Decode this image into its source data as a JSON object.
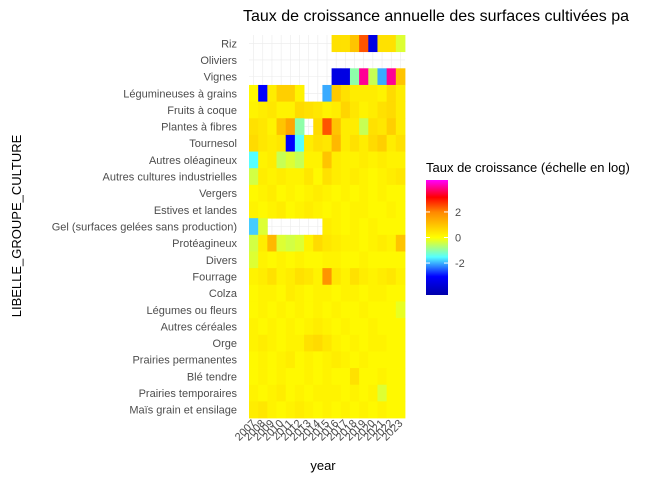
{
  "chart_data": {
    "type": "heatmap",
    "title": "Taux de croissance annuelle des surfaces cultivées pa",
    "xlabel": "year",
    "ylabel": "LIBELLE_GROUPE_CULTURE",
    "x": [
      "2007",
      "2008",
      "2009",
      "2010",
      "2011",
      "2012",
      "2013",
      "2014",
      "2015",
      "2016",
      "2017",
      "2018",
      "2019",
      "2020",
      "2021",
      "2022",
      "2023"
    ],
    "y": [
      "Riz",
      "Oliviers",
      "Vignes",
      "Légumineuses à grains",
      "Fruits à coque",
      "Plantes à fibres",
      "Tournesol",
      "Autres oléagineux",
      "Autres cultures industrielles",
      "Vergers",
      "Estives et landes",
      "Gel (surfaces gelées sans production)",
      "Protéagineux",
      "Divers",
      "Fourrage",
      "Colza",
      "Légumes ou fleurs",
      "Autres céréales",
      "Orge",
      "Prairies permanentes",
      "Blé tendre",
      "Prairies temporaires",
      "Maïs grain et ensilage"
    ],
    "values": [
      [
        null,
        null,
        null,
        null,
        null,
        null,
        null,
        null,
        null,
        0.5,
        0.5,
        1.0,
        2.5,
        -3.5,
        0.5,
        0.5,
        -0.3
      ],
      [
        null,
        null,
        null,
        null,
        null,
        null,
        null,
        null,
        null,
        null,
        null,
        null,
        null,
        null,
        null,
        null,
        null
      ],
      [
        null,
        null,
        null,
        null,
        null,
        null,
        null,
        null,
        null,
        -3.5,
        -3.5,
        -1.0,
        4.0,
        -0.5,
        -2.0,
        4.0,
        1.0
      ],
      [
        0.1,
        -3.0,
        0.3,
        0.8,
        0.8,
        0.2,
        null,
        null,
        -2.0,
        0.9,
        0.5,
        0.3,
        0.3,
        0.3,
        0.2,
        0.6,
        0.3
      ],
      [
        0.2,
        0.3,
        0.4,
        0.2,
        0.2,
        0.6,
        0.5,
        0.4,
        0.2,
        0.3,
        0.7,
        0.4,
        0.2,
        0.3,
        0.5,
        0.6,
        0.3
      ],
      [
        0.5,
        0.4,
        0.2,
        1.0,
        1.5,
        -1.0,
        null,
        0.6,
        2.5,
        1.0,
        0.3,
        0.3,
        -0.5,
        0.5,
        0.4,
        0.8,
        0.3
      ],
      [
        0.6,
        0.4,
        0.3,
        0.4,
        -3.0,
        -1.5,
        0.3,
        0.5,
        0.4,
        1.2,
        0.3,
        0.5,
        0.3,
        0.6,
        0.8,
        0.3,
        0.5
      ],
      [
        -1.5,
        0.2,
        0.3,
        -0.5,
        -0.3,
        -0.5,
        0.2,
        0.2,
        1.0,
        0.3,
        0.2,
        0.2,
        0.3,
        0.2,
        0.3,
        0.2,
        0.2
      ],
      [
        -0.4,
        0.3,
        0.2,
        0.3,
        0.2,
        0.2,
        0.4,
        0.1,
        0.5,
        0.3,
        0.2,
        0.3,
        0.2,
        0.1,
        0.2,
        0.3,
        0.4
      ],
      [
        0.1,
        0.2,
        0.3,
        0.1,
        0.2,
        0.1,
        0.2,
        0.3,
        0.2,
        0.1,
        0.2,
        0.1,
        0.2,
        0.1,
        0.2,
        0.1,
        0.1
      ],
      [
        0.2,
        0.1,
        0.2,
        0.3,
        0.1,
        0.2,
        0.3,
        0.2,
        0.1,
        0.2,
        0.1,
        0.2,
        0.2,
        0.1,
        0.1,
        0.2,
        0.1
      ],
      [
        -1.8,
        -0.3,
        null,
        null,
        null,
        null,
        null,
        null,
        0.3,
        0.2,
        0.1,
        0.2,
        0.1,
        0.2,
        0.1,
        0.1,
        0.1
      ],
      [
        -0.4,
        0.3,
        1.2,
        -0.3,
        -0.4,
        -0.3,
        0.2,
        0.6,
        0.4,
        0.3,
        0.2,
        0.2,
        0.1,
        0.2,
        0.3,
        0.2,
        1.0
      ],
      [
        -0.3,
        0.2,
        0.1,
        0.2,
        0.1,
        0.2,
        0.1,
        0.1,
        0.2,
        0.2,
        0.1,
        0.1,
        0.2,
        0.1,
        0.1,
        0.1,
        0.1
      ],
      [
        0.2,
        0.3,
        0.5,
        0.2,
        0.3,
        0.5,
        0.4,
        0.2,
        1.8,
        0.4,
        0.2,
        0.5,
        0.3,
        0.2,
        0.3,
        0.4,
        0.2
      ],
      [
        0.1,
        0.2,
        0.2,
        0.1,
        0.3,
        0.2,
        0.1,
        0.2,
        0.2,
        0.1,
        0.2,
        0.2,
        0.1,
        0.2,
        0.2,
        0.1,
        0.1
      ],
      [
        0.1,
        0.2,
        0.1,
        0.2,
        0.1,
        0.2,
        0.1,
        0.2,
        0.1,
        0.2,
        0.1,
        0.1,
        0.2,
        0.1,
        0.1,
        0.1,
        -0.2
      ],
      [
        0.2,
        0.1,
        0.2,
        0.1,
        0.2,
        0.1,
        0.2,
        0.3,
        0.2,
        0.1,
        0.2,
        0.1,
        0.1,
        0.2,
        0.1,
        0.1,
        0.1
      ],
      [
        0.2,
        0.3,
        0.2,
        0.1,
        0.2,
        0.2,
        0.5,
        0.6,
        0.4,
        0.2,
        0.1,
        0.2,
        0.1,
        0.2,
        0.2,
        0.1,
        0.1
      ],
      [
        0.1,
        0.2,
        0.1,
        0.2,
        0.3,
        0.1,
        0.2,
        0.1,
        0.2,
        0.3,
        0.2,
        0.1,
        0.2,
        0.1,
        0.1,
        0.1,
        0.1
      ],
      [
        0.1,
        0.2,
        0.1,
        0.2,
        0.1,
        0.1,
        0.2,
        0.1,
        0.2,
        0.1,
        0.1,
        0.5,
        0.1,
        0.1,
        0.2,
        0.1,
        0.1
      ],
      [
        0.2,
        0.1,
        0.2,
        0.3,
        0.1,
        0.2,
        0.1,
        0.2,
        0.2,
        0.2,
        0.1,
        0.2,
        0.1,
        0.2,
        -0.3,
        0.1,
        0.1
      ],
      [
        0.3,
        0.4,
        0.2,
        0.1,
        0.2,
        0.3,
        0.2,
        0.1,
        0.2,
        0.1,
        0.2,
        0.1,
        0.2,
        0.1,
        0.2,
        0.1,
        0.1
      ]
    ],
    "legend": {
      "title": "Taux de croissance (échelle en log)",
      "ticks": [
        2,
        0,
        -2
      ],
      "range": [
        -4.5,
        4.5
      ],
      "placement": "right"
    },
    "colors": {
      "scale": [
        "#0000aa",
        "#0000ff",
        "#55ffff",
        "#ffff00",
        "#ff8800",
        "#ff0000",
        "#ff00ff"
      ],
      "panel_grid": "#ebebeb",
      "missing": "#ffffff"
    },
    "grid": true
  }
}
